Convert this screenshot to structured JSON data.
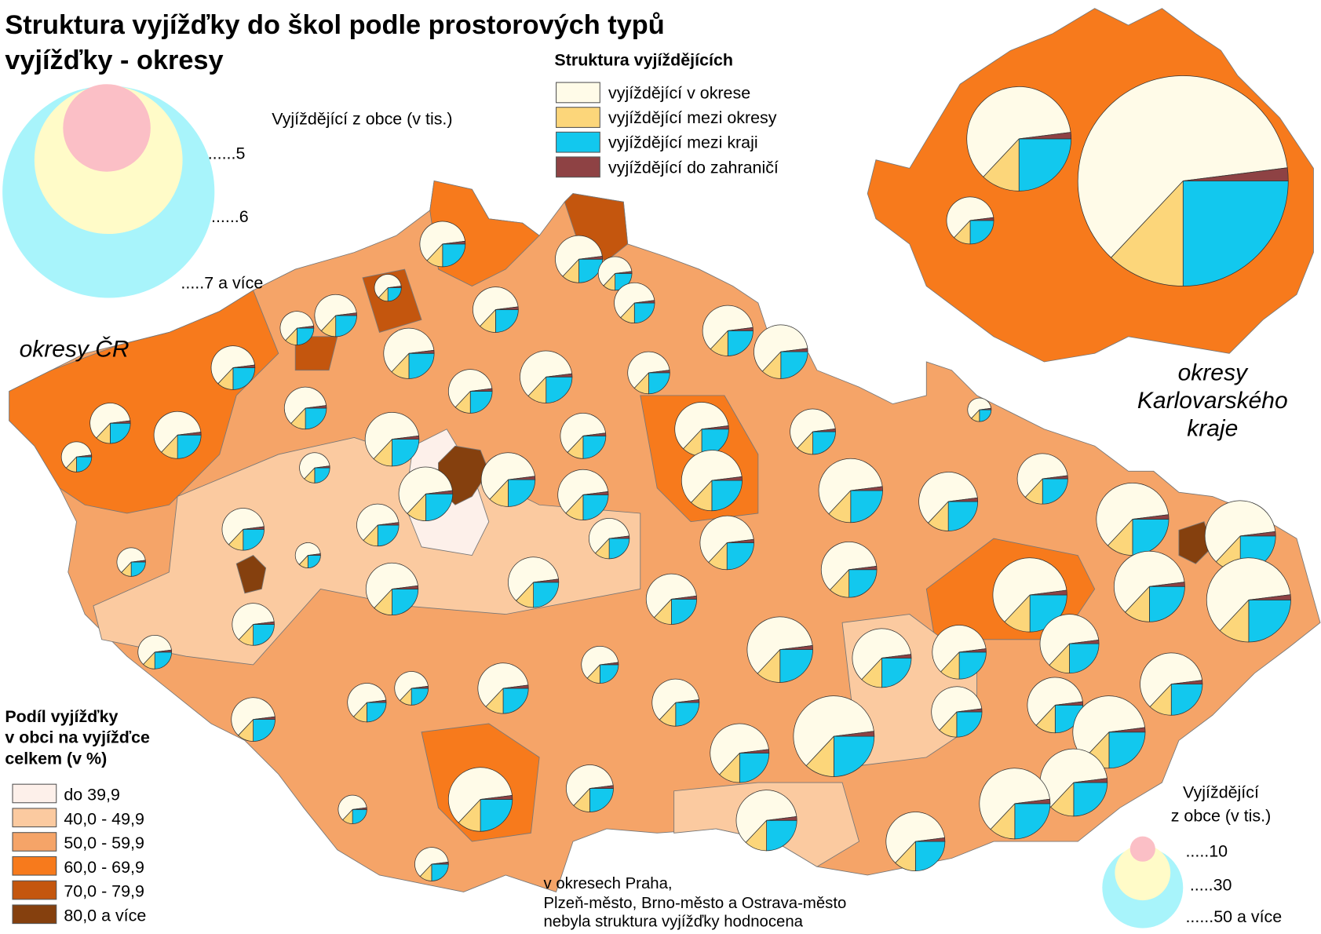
{
  "title": [
    "Struktura vyjížďky do škol podle prostorových typů",
    "vyjížďky - okresy"
  ],
  "structure_legend": {
    "title": "Struktura vyjíždějících",
    "items": [
      {
        "label": "vyjíždějící v okrese",
        "color": "#fffbe8"
      },
      {
        "label": "vyjíždějící mezi okresy",
        "color": "#fcd67a"
      },
      {
        "label": "vyjíždějící mezi kraji",
        "color": "#12c8ee"
      },
      {
        "label": "vyjíždějící do zahraničí",
        "color": "#8e4244"
      }
    ]
  },
  "size_legend_top": {
    "title": "Vyjíždějící z obce (v tis.)",
    "labels": [
      "......5",
      "......6",
      ".....7 a více"
    ]
  },
  "share_legend": {
    "title": [
      "Podíl vyjížďky",
      "v obci na vyjížďce",
      "celkem (v %)"
    ],
    "classes": [
      {
        "label": "do 39,9",
        "color": "#fdf0ea"
      },
      {
        "label": "40,0 - 49,9",
        "color": "#fbcaa0"
      },
      {
        "label": "50,0 - 59,9",
        "color": "#f5a468"
      },
      {
        "label": "60,0 - 69,9",
        "color": "#f77a1c"
      },
      {
        "label": "70,0 - 79,9",
        "color": "#c4560e"
      },
      {
        "label": "80,0 a více",
        "color": "#85400e"
      }
    ]
  },
  "size_legend_bottom": {
    "title": [
      "Vyjíždějící",
      "z obce (v tis.)"
    ],
    "labels": [
      ".....10",
      ".....30",
      "......50 a více"
    ]
  },
  "map_labels": {
    "cr": "okresy ČR",
    "karlovarsky": [
      "okresy",
      "Karlovarského",
      "kraje"
    ]
  },
  "note": [
    "v okresech Praha,",
    "Plzeň-město, Brno-město a Ostrava-město",
    "nebyla struktura vyjížďky hodnocena"
  ]
}
